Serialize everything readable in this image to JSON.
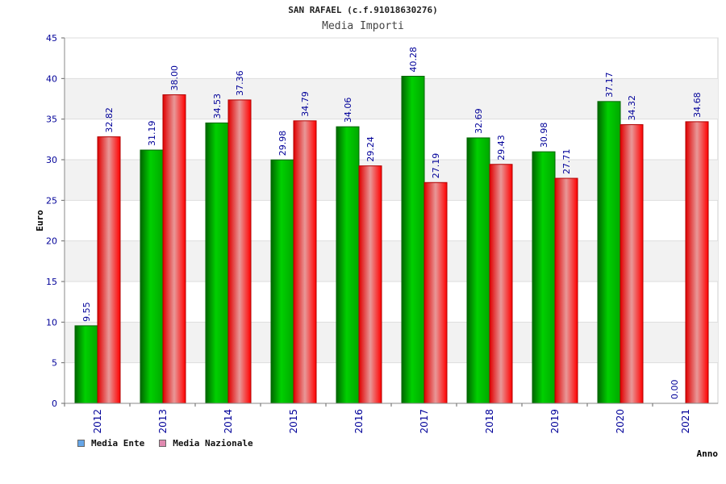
{
  "chart_data": {
    "type": "bar",
    "title": "SAN RAFAEL (c.f.91018630276)",
    "subtitle": "Media Importi",
    "xlabel": "Anno",
    "ylabel": "Euro",
    "ylim": [
      0,
      45
    ],
    "yticks": [
      "0",
      "5",
      "10",
      "15",
      "20",
      "25",
      "30",
      "35",
      "40",
      "45"
    ],
    "grid": true,
    "categories": [
      "2012",
      "2013",
      "2014",
      "2015",
      "2016",
      "2017",
      "2018",
      "2019",
      "2020",
      "2021"
    ],
    "series": [
      {
        "name": "Media Ente",
        "values": [
          9.55,
          31.19,
          34.53,
          29.98,
          34.06,
          40.28,
          32.69,
          30.98,
          37.17,
          0.0
        ],
        "labels": [
          "9.55",
          "31.19",
          "34.53",
          "29.98",
          "34.06",
          "40.28",
          "32.69",
          "30.98",
          "37.17",
          "0.00"
        ],
        "color": "#00b000",
        "legend_color": "#66a6e8"
      },
      {
        "name": "Media Nazionale",
        "values": [
          32.82,
          38.0,
          37.36,
          34.79,
          29.24,
          27.19,
          29.43,
          27.71,
          34.32,
          34.68
        ],
        "labels": [
          "32.82",
          "38.00",
          "37.36",
          "34.79",
          "29.24",
          "27.19",
          "29.43",
          "27.71",
          "34.32",
          "34.68"
        ],
        "color": "#ff0000",
        "legend_color": "#e08ab0"
      }
    ],
    "legend_placement": "bottom-left",
    "label_color": "#000099"
  }
}
